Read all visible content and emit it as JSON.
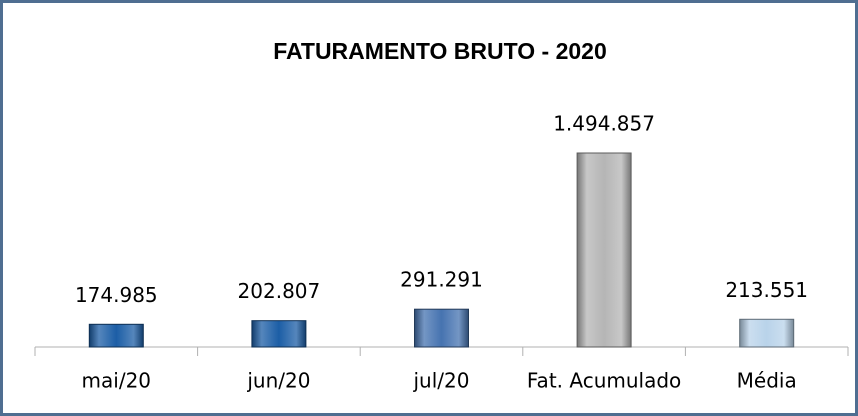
{
  "chart_data": {
    "type": "bar",
    "title": "FATURAMENTO BRUTO - 2020",
    "categories": [
      "mai/20",
      "jun/20",
      "jul/20",
      "Fat. Acumulado",
      "Média"
    ],
    "values": [
      174985,
      202807,
      291291,
      1494857,
      213551
    ],
    "value_labels": [
      "174.985",
      "202.807",
      "291.291",
      "1.494.857",
      "213.551"
    ],
    "colors": [
      "#1c5ea6",
      "#1c5ea6",
      "#4673b0",
      "#b5b5b5",
      "#b9d3ea"
    ]
  }
}
